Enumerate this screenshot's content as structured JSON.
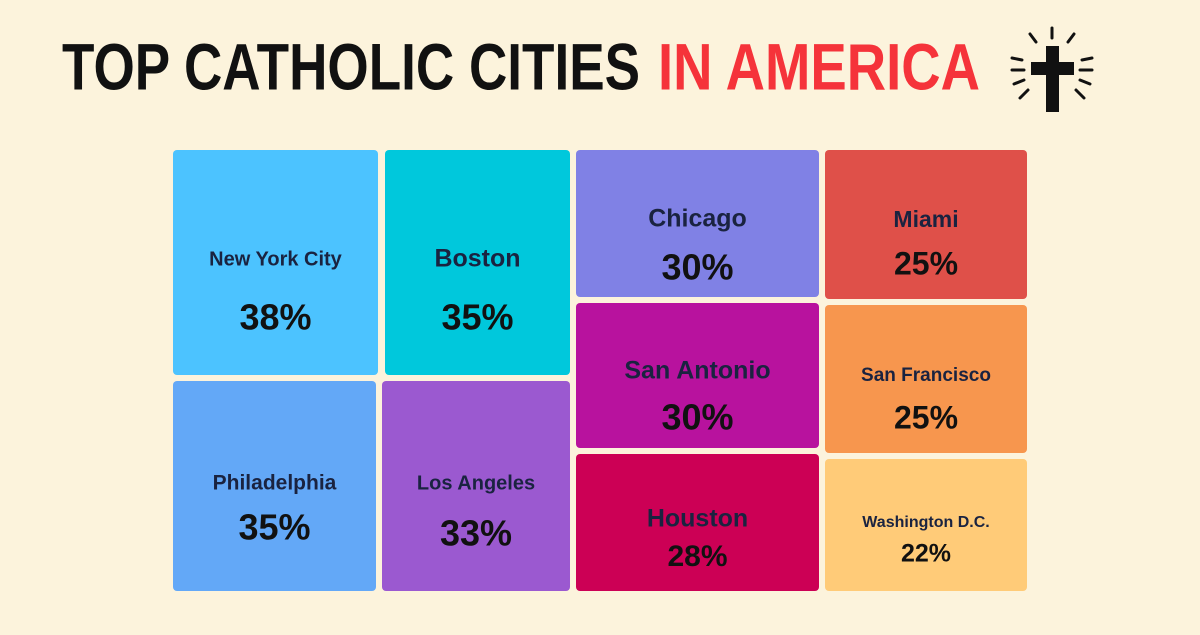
{
  "chart_data": {
    "type": "treemap",
    "title": [
      "TOP CATHOLIC CITIES",
      "IN AMERICA"
    ],
    "title_colors": [
      "#111111",
      "#f5333a"
    ],
    "categories": [
      "New York City",
      "Boston",
      "Philadelphia",
      "Los Angeles",
      "Chicago",
      "San Antonio",
      "Houston",
      "Miami",
      "San Francisco",
      "Washington D.C."
    ],
    "values": [
      38,
      35,
      35,
      33,
      30,
      30,
      28,
      25,
      25,
      22
    ],
    "value_labels": [
      "38%",
      "35%",
      "35%",
      "33%",
      "30%",
      "30%",
      "28%",
      "25%",
      "25%",
      "22%"
    ],
    "colors": [
      "#4cc3ff",
      "#00c8dc",
      "#63a8f7",
      "#9b59d0",
      "#8081e5",
      "#b8129e",
      "#cc0055",
      "#df5049",
      "#f7964e",
      "#ffcb78"
    ]
  }
}
